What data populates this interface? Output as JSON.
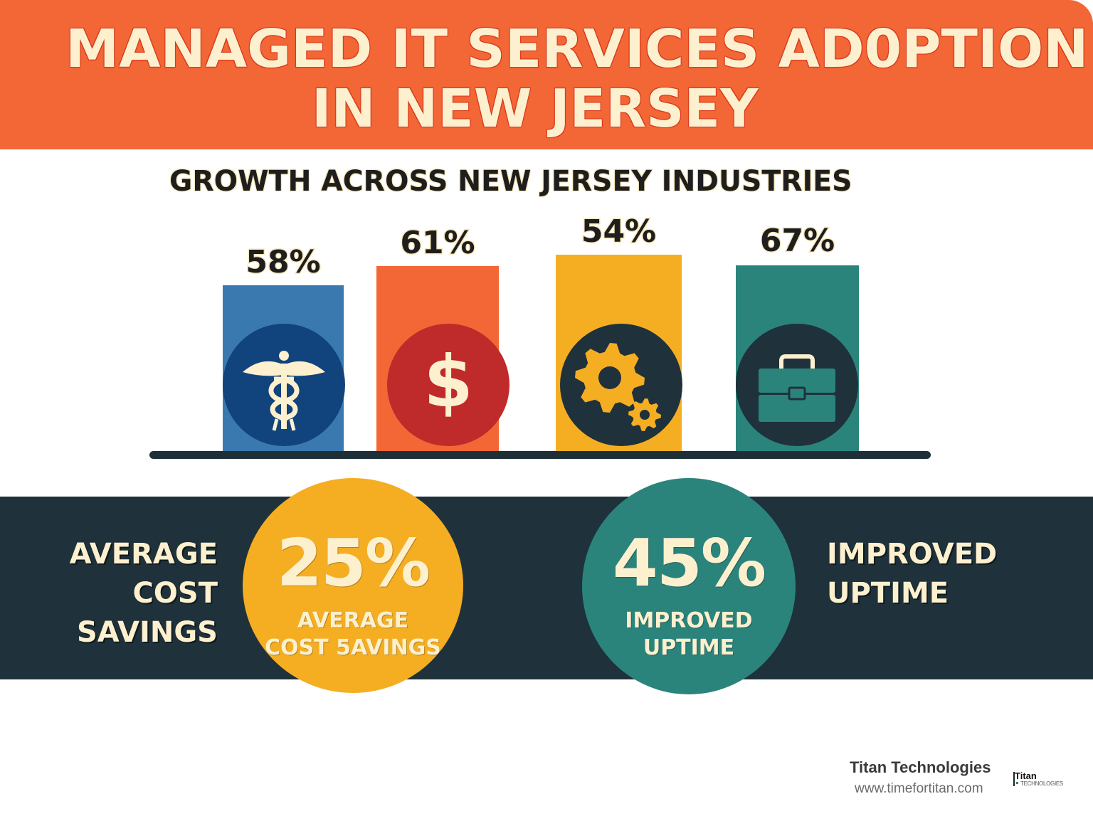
{
  "header": {
    "title_line1": "MANAGED IT SERVICES AD0PTION",
    "title_line2": "IN NEW JERSEY",
    "background": "#F26735",
    "text_color": "#FDF0CF"
  },
  "chart_data": {
    "type": "bar",
    "title": "GROWTH ACROSS NEW JERSEY INDUSTRIES",
    "xlabel": "",
    "ylabel": "",
    "categories": [
      "Healthcare",
      "Finance",
      "Manufacturing",
      "Professional Services"
    ],
    "values": [
      58,
      61,
      54,
      67
    ],
    "value_labels": [
      "58%",
      "61%",
      "54%",
      "67%"
    ],
    "unit": "%",
    "colors": [
      "#3A79B0",
      "#F26735",
      "#F5AE22",
      "#2A847C"
    ],
    "icons": [
      "caduceus-icon",
      "dollar-icon",
      "gears-icon",
      "briefcase-icon"
    ],
    "icon_circle_colors": [
      "#11437D",
      "#BF2A2A",
      "#1F313A",
      "#1F313A"
    ],
    "grid": false,
    "legend": "none"
  },
  "stats": [
    {
      "big": "25%",
      "small_line1": "AVERAGE",
      "small_line2": "COST 5AVINGS",
      "side_label": [
        "AVERAGE",
        "COST",
        "SAVINGS"
      ],
      "color": "#F5AE22"
    },
    {
      "big": "45%",
      "small_line1": "IMPROVED",
      "small_line2": "UPTIME",
      "side_label": [
        "IMPROVED",
        "UPTIME"
      ],
      "color": "#2A847C"
    }
  ],
  "footer": {
    "company": "Titan Technologies",
    "url": "www.timefortitan.com",
    "logo_main": "Titan",
    "logo_sub": "TECHNOLOGIES"
  }
}
